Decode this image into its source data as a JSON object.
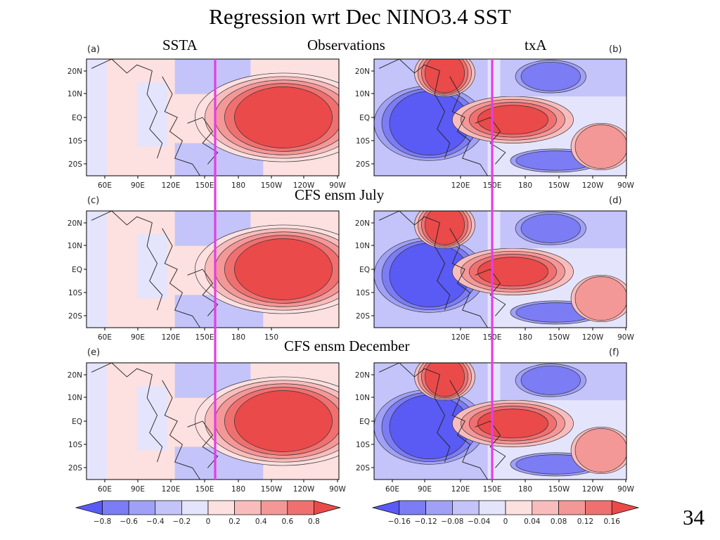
{
  "slide": {
    "title": "Regression wrt Dec NINO3.4 SST",
    "page_number": "34",
    "column_headers": {
      "left": "SSTA",
      "center": "Observations",
      "right": "txA"
    },
    "row_labels": [
      "CFS ensm July",
      "CFS ensm December"
    ]
  },
  "panels": [
    {
      "letter": "(a)",
      "field": "SSTA",
      "row": "Observations",
      "xticks": [
        "60E",
        "90E",
        "120E",
        "150E",
        "180",
        "150W",
        "120W",
        "90W"
      ]
    },
    {
      "letter": "(b)",
      "field": "txA",
      "row": "Observations",
      "xticks": [
        "120E",
        "150E",
        "180",
        "150W",
        "120W",
        "90W"
      ]
    },
    {
      "letter": "(c)",
      "field": "SSTA",
      "row": "CFS ensm July",
      "xticks": [
        "60E",
        "90E",
        "120E",
        "150E",
        "180",
        "150"
      ]
    },
    {
      "letter": "(d)",
      "field": "txA",
      "row": "CFS ensm July",
      "xticks": [
        "120E",
        "150E",
        "180",
        "150W",
        "120W",
        "90W"
      ]
    },
    {
      "letter": "(e)",
      "field": "SSTA",
      "row": "CFS ensm December",
      "xticks": [
        "60E",
        "90E",
        "120E",
        "150E",
        "180",
        "150W",
        "120W",
        "90W"
      ]
    },
    {
      "letter": "(f)",
      "field": "txA",
      "row": "CFS ensm December",
      "xticks": [
        "60E",
        "90E",
        "120E",
        "150E",
        "180",
        "150W",
        "120W",
        "90W"
      ]
    }
  ],
  "yticks": [
    "20N",
    "10N",
    "EQ",
    "10S",
    "20S"
  ],
  "colorbars": {
    "ssta": {
      "labels": [
        "−0.8",
        "−0.6",
        "−0.4",
        "−0.2",
        "0",
        "0.2",
        "0.4",
        "0.6",
        "0.8"
      ]
    },
    "txa": {
      "labels": [
        "−0.16",
        "−0.12",
        "−0.08",
        "−0.04",
        "0",
        "0.04",
        "0.08",
        "0.12",
        "0.16"
      ]
    },
    "colors": [
      "#5a5af5",
      "#7c7cf5",
      "#a0a0f7",
      "#c4c4fa",
      "#e4e4fd",
      "#fde0e0",
      "#f9bcbc",
      "#f49797",
      "#f07070",
      "#ea4a4a"
    ]
  },
  "marker_line": {
    "longitude": "150E",
    "color": "#e63de6"
  },
  "chart_data": {
    "type": "heatmap",
    "description_fields": [
      "SSTA",
      "txA"
    ],
    "latitude_range": [
      -25,
      25
    ],
    "longitude_range_labels": [
      "60E",
      "90W"
    ],
    "ssta_contour_levels": [
      -0.8,
      -0.6,
      -0.4,
      -0.2,
      0,
      0.2,
      0.4,
      0.6,
      0.8
    ],
    "txa_contour_levels": [
      -0.16,
      -0.12,
      -0.08,
      -0.04,
      0,
      0.04,
      0.08,
      0.12,
      0.16
    ]
  }
}
